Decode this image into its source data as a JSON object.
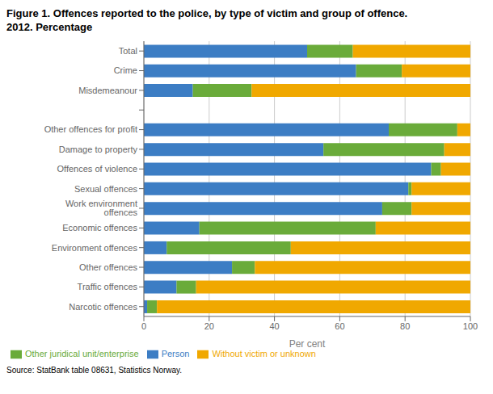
{
  "chart_data": {
    "type": "bar",
    "orientation": "horizontal",
    "stacked": true,
    "title": "Figure 1. Offences reported to the police, by type of victim and group of offence.",
    "subtitle": "2012. Percentage",
    "categories": [
      "Narcotic offences",
      "Traffic offences",
      "Other offences",
      "Environment offences",
      "Economic offences",
      "Work environment offences",
      "Sexual offences",
      "Offences of violence",
      "Damage to property",
      "Other offences for profit",
      null,
      "Misdemeanour",
      "Crime",
      "Total"
    ],
    "series": [
      {
        "name": "Person",
        "color": "#3c7dc4",
        "values": [
          1,
          10,
          27,
          7,
          17,
          73,
          81,
          88,
          55,
          75,
          0,
          15,
          65,
          50
        ]
      },
      {
        "name": "Other juridical unit/enterprise",
        "color": "#6aab3a",
        "values": [
          3,
          6,
          7,
          38,
          54,
          9,
          1,
          3,
          37,
          21,
          0,
          18,
          14,
          14
        ]
      },
      {
        "name": "Without victim or unknown",
        "color": "#f0a800",
        "values": [
          96,
          84,
          66,
          55,
          29,
          18,
          18,
          9,
          8,
          4,
          0,
          67,
          21,
          36
        ]
      }
    ],
    "x_label": "Per cent",
    "xlim": [
      0,
      100
    ],
    "xticks": [
      0,
      20,
      40,
      60,
      80,
      100
    ],
    "grid": true,
    "legend": "lower left",
    "annotations": [
      "Source: StatBank table 08631, Statistics Norway."
    ]
  }
}
